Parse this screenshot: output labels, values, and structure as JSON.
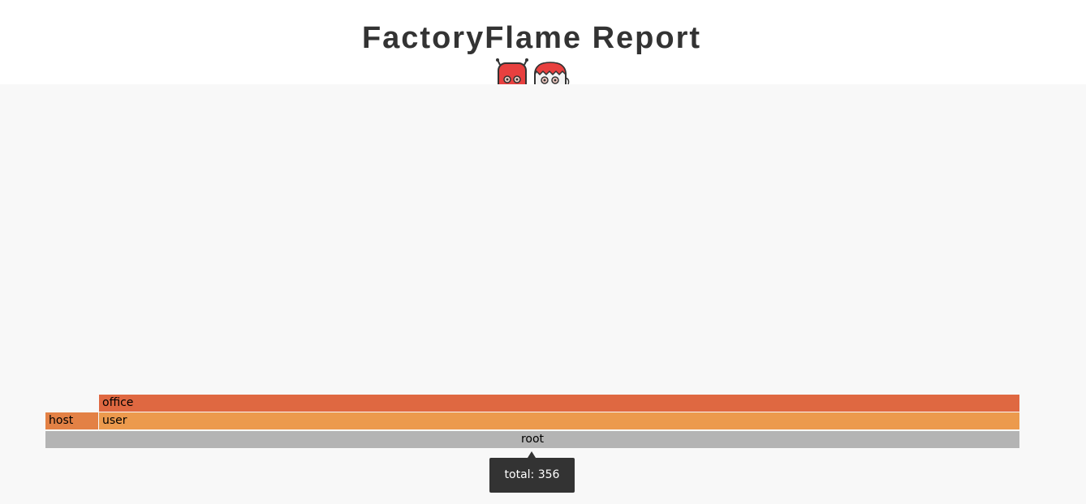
{
  "header": {
    "title": "FactoryFlame Report",
    "mascot_icons": [
      "red-robot-mascot-icon",
      "red-haired-mascot-icon"
    ]
  },
  "colors": {
    "chart_background": "#f8f8f8",
    "root": "#b4b4b4",
    "level1_host": "#e38145",
    "level1_user": "#ec9a4d",
    "level2_office": "#df6841",
    "tooltip_background": "#333333"
  },
  "chart_data": {
    "type": "flamegraph",
    "total": 356,
    "frames": [
      {
        "name": "root",
        "depth": 0
      },
      {
        "name": "host",
        "depth": 1
      },
      {
        "name": "user",
        "depth": 1
      },
      {
        "name": "office",
        "depth": 2
      }
    ]
  },
  "tooltip": {
    "text": "total: 356"
  }
}
